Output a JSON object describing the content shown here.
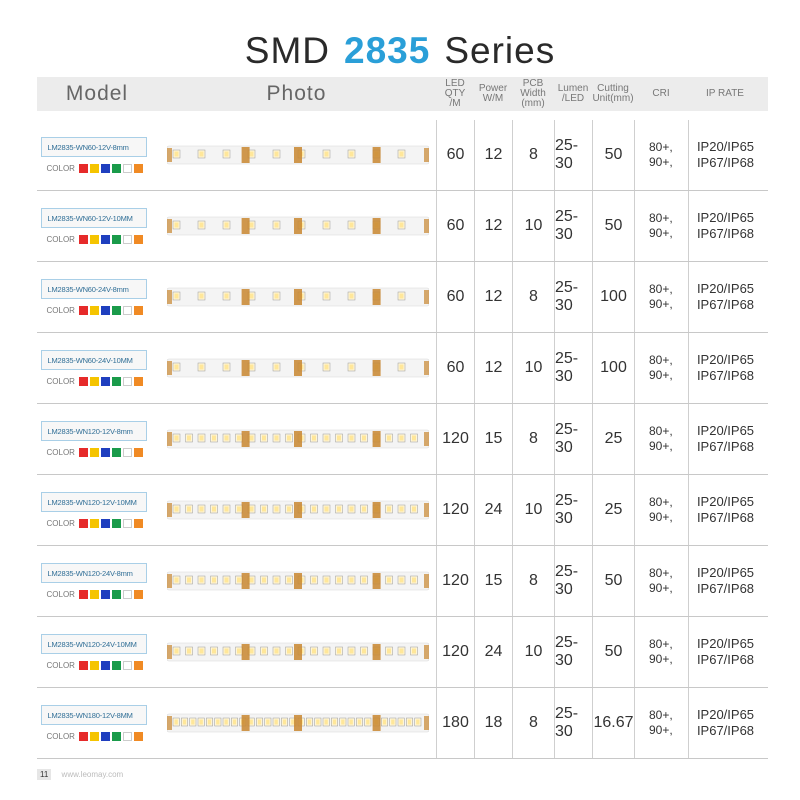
{
  "title": {
    "prefix": "SMD",
    "accent": "2835",
    "suffix": "Series"
  },
  "header": {
    "model": "Model",
    "photo": "Photo",
    "led_qty": [
      "LED  QTY",
      "/M"
    ],
    "power": [
      "Power",
      "W/M"
    ],
    "pcb_width": [
      "PCB Width",
      "(mm)"
    ],
    "lumen": [
      "Lumen",
      "/LED"
    ],
    "cutting": [
      "Cutting",
      "Unit(mm)"
    ],
    "cri": "CRI",
    "ip_rate": "IP RATE"
  },
  "color_label": "COLOR",
  "swatches": [
    "#e62a2a",
    "#f5c400",
    "#1f3fbf",
    "#1a9b4a",
    "#ffffff",
    "#f08a24"
  ],
  "rows": [
    {
      "model": "LM2835-WN60-12V-8mm",
      "led_qty": "60",
      "power": "12",
      "pcb": "8",
      "lumen": "25-30",
      "cut": "50",
      "cri": [
        "80+,",
        "90+,"
      ],
      "ip": [
        "IP20/IP65",
        "IP67/IP68"
      ]
    },
    {
      "model": "LM2835-WN60-12V-10MM",
      "led_qty": "60",
      "power": "12",
      "pcb": "10",
      "lumen": "25-30",
      "cut": "50",
      "cri": [
        "80+,",
        "90+,"
      ],
      "ip": [
        "IP20/IP65",
        "IP67/IP68"
      ]
    },
    {
      "model": "LM2835-WN60-24V-8mm",
      "led_qty": "60",
      "power": "12",
      "pcb": "8",
      "lumen": "25-30",
      "cut": "100",
      "cri": [
        "80+,",
        "90+,"
      ],
      "ip": [
        "IP20/IP65",
        "IP67/IP68"
      ]
    },
    {
      "model": "LM2835-WN60-24V-10MM",
      "led_qty": "60",
      "power": "12",
      "pcb": "10",
      "lumen": "25-30",
      "cut": "100",
      "cri": [
        "80+,",
        "90+,"
      ],
      "ip": [
        "IP20/IP65",
        "IP67/IP68"
      ]
    },
    {
      "model": "LM2835-WN120-12V-8mm",
      "led_qty": "120",
      "power": "15",
      "pcb": "8",
      "lumen": "25-30",
      "cut": "25",
      "cri": [
        "80+,",
        "90+,"
      ],
      "ip": [
        "IP20/IP65",
        "IP67/IP68"
      ]
    },
    {
      "model": "LM2835-WN120-12V-10MM",
      "led_qty": "120",
      "power": "24",
      "pcb": "10",
      "lumen": "25-30",
      "cut": "25",
      "cri": [
        "80+,",
        "90+,"
      ],
      "ip": [
        "IP20/IP65",
        "IP67/IP68"
      ]
    },
    {
      "model": "LM2835-WN120-24V-8mm",
      "led_qty": "120",
      "power": "15",
      "pcb": "8",
      "lumen": "25-30",
      "cut": "50",
      "cri": [
        "80+,",
        "90+,"
      ],
      "ip": [
        "IP20/IP65",
        "IP67/IP68"
      ]
    },
    {
      "model": "LM2835-WN120-24V-10MM",
      "led_qty": "120",
      "power": "24",
      "pcb": "10",
      "lumen": "25-30",
      "cut": "50",
      "cri": [
        "80+,",
        "90+,"
      ],
      "ip": [
        "IP20/IP65",
        "IP67/IP68"
      ]
    },
    {
      "model": "LM2835-WN180-12V-8MM",
      "led_qty": "180",
      "power": "18",
      "pcb": "8",
      "lumen": "25-30",
      "cut": "16.67",
      "cri": [
        "80+,",
        "90+,"
      ],
      "ip": [
        "IP20/IP65",
        "IP67/IP68"
      ]
    }
  ],
  "footer": {
    "page": "11",
    "url": "www.leomay.com"
  }
}
